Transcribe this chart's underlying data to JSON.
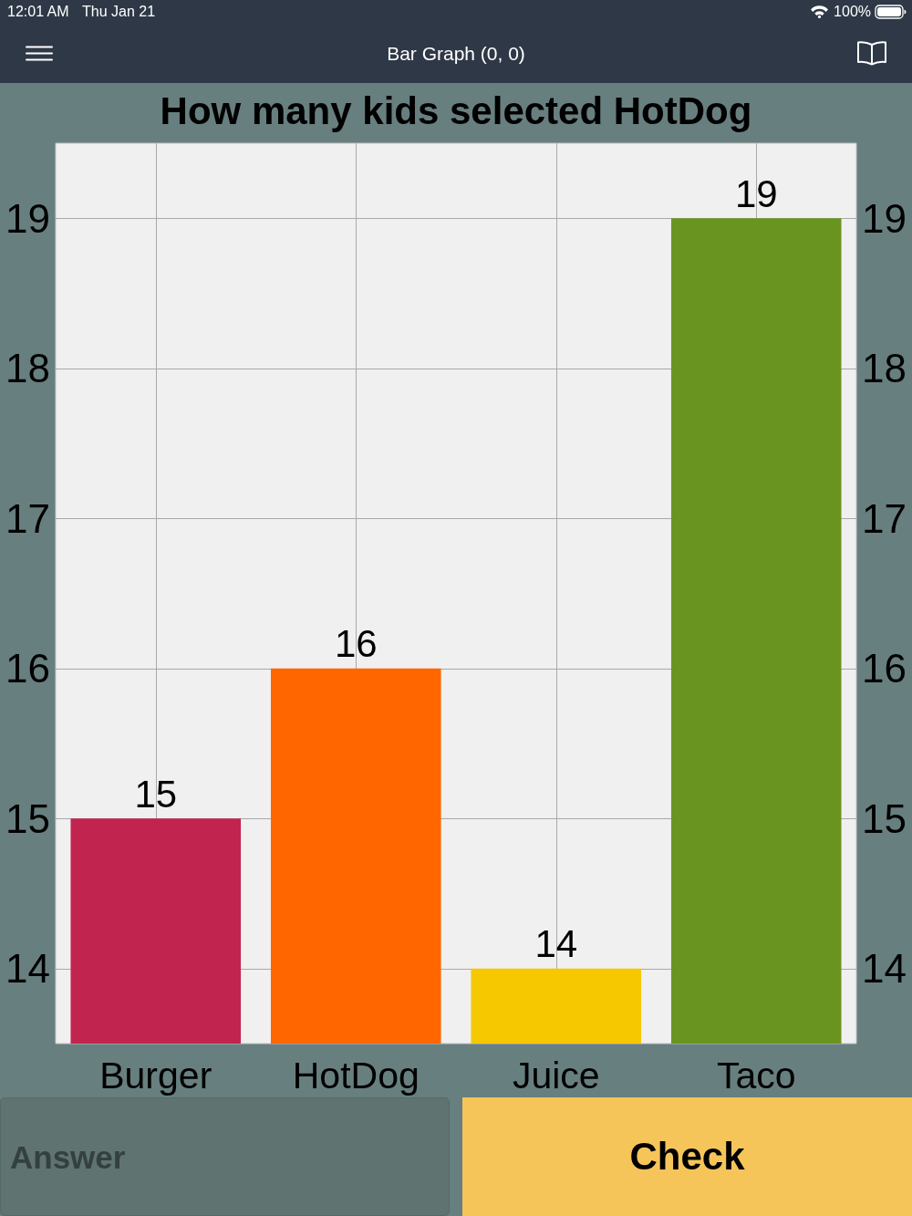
{
  "chart_data": {
    "type": "bar",
    "title": "How many kids selected HotDog",
    "categories": [
      "Burger",
      "HotDog",
      "Juice",
      "Taco"
    ],
    "values": [
      15,
      16,
      14,
      19
    ],
    "colors": [
      "#c1244f",
      "#ff6600",
      "#f5c800",
      "#6a9420"
    ],
    "ylim": [
      13.5,
      19.5
    ],
    "yticks": [
      14,
      15,
      16,
      17,
      18,
      19
    ],
    "y2lim": [
      13.5,
      19.5
    ],
    "y2ticks": [
      14,
      15,
      16,
      17,
      18,
      19
    ],
    "grid": true,
    "data_labels": true,
    "annotations": [
      "12:01 AM",
      "Thu Jan 21",
      "100%",
      "Bar Graph (0, 0)",
      "Answer",
      "Check"
    ]
  }
}
